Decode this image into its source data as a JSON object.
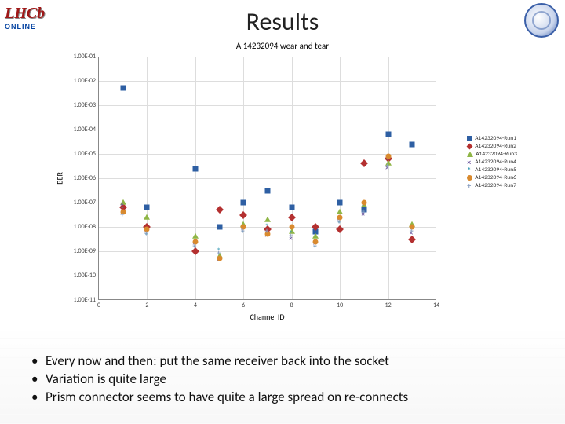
{
  "title": "Results",
  "logos": {
    "left_main": "LHCb",
    "left_sub": "ONLINE"
  },
  "chart": {
    "type": "scatter",
    "title": "A 14232094 wear and tear",
    "xlabel": "Channel ID",
    "ylabel": "BER",
    "title_fontsize": 11,
    "label_fontsize": 10,
    "tick_fontsize": 8,
    "background_color": "#ffffff",
    "grid_color": "#dddddd",
    "axis_color": "#888888",
    "xlim": [
      0,
      14
    ],
    "xticks": [
      0,
      2,
      4,
      6,
      8,
      10,
      12,
      14
    ],
    "y_scale": "log",
    "y_exp_range": [
      -11,
      -1
    ],
    "yticks_exp": [
      -1,
      -2,
      -3,
      -4,
      -5,
      -6,
      -7,
      -8,
      -9,
      -10,
      -11
    ],
    "ytick_labels": [
      "1.00E-01",
      "1.00E-02",
      "1.00E-03",
      "1.00E-04",
      "1.00E-05",
      "1.00E-06",
      "1.00E-07",
      "1.00E-08",
      "1.00E-09",
      "1.00E-10",
      "1.00E-11"
    ],
    "series": [
      {
        "name": "A14232094-Run1",
        "color": "#2e5fa3",
        "marker": "square",
        "points": [
          {
            "x": 1,
            "yexp": -2.3
          },
          {
            "x": 2,
            "yexp": -7.2
          },
          {
            "x": 4,
            "yexp": -5.6
          },
          {
            "x": 5,
            "yexp": -8.0
          },
          {
            "x": 6,
            "yexp": -7.0
          },
          {
            "x": 7,
            "yexp": -6.5
          },
          {
            "x": 8,
            "yexp": -7.2
          },
          {
            "x": 9,
            "yexp": -8.2
          },
          {
            "x": 10,
            "yexp": -7.0
          },
          {
            "x": 11,
            "yexp": -7.3
          },
          {
            "x": 12,
            "yexp": -4.2
          },
          {
            "x": 13,
            "yexp": -4.6
          }
        ]
      },
      {
        "name": "A14232094-Run2",
        "color": "#b43030",
        "marker": "diamond",
        "points": [
          {
            "x": 1,
            "yexp": -7.2
          },
          {
            "x": 2,
            "yexp": -8.0
          },
          {
            "x": 4,
            "yexp": -9.0
          },
          {
            "x": 5,
            "yexp": -7.3
          },
          {
            "x": 6,
            "yexp": -7.5
          },
          {
            "x": 7,
            "yexp": -8.1
          },
          {
            "x": 8,
            "yexp": -7.6
          },
          {
            "x": 9,
            "yexp": -8.0
          },
          {
            "x": 10,
            "yexp": -8.1
          },
          {
            "x": 11,
            "yexp": -5.4
          },
          {
            "x": 12,
            "yexp": -5.2
          },
          {
            "x": 13,
            "yexp": -8.5
          }
        ]
      },
      {
        "name": "A14232094-Run3",
        "color": "#8fb646",
        "marker": "triangle",
        "points": [
          {
            "x": 1,
            "yexp": -7.0
          },
          {
            "x": 2,
            "yexp": -7.6
          },
          {
            "x": 4,
            "yexp": -8.4
          },
          {
            "x": 5,
            "yexp": -9.2
          },
          {
            "x": 6,
            "yexp": -7.9
          },
          {
            "x": 7,
            "yexp": -7.7
          },
          {
            "x": 8,
            "yexp": -8.2
          },
          {
            "x": 9,
            "yexp": -8.4
          },
          {
            "x": 10,
            "yexp": -7.4
          },
          {
            "x": 11,
            "yexp": -7.1
          },
          {
            "x": 12,
            "yexp": -5.4
          },
          {
            "x": 13,
            "yexp": -7.9
          }
        ]
      },
      {
        "name": "A14232094-Run4",
        "color": "#6f5aa0",
        "marker": "x",
        "points": [
          {
            "x": 1,
            "yexp": -7.1
          },
          {
            "x": 2,
            "yexp": -8.2
          },
          {
            "x": 4,
            "yexp": -8.7
          },
          {
            "x": 5,
            "yexp": -9.4
          },
          {
            "x": 6,
            "yexp": -8.1
          },
          {
            "x": 7,
            "yexp": -8.4
          },
          {
            "x": 8,
            "yexp": -8.5
          },
          {
            "x": 9,
            "yexp": -8.7
          },
          {
            "x": 10,
            "yexp": -7.7
          },
          {
            "x": 11,
            "yexp": -7.5
          },
          {
            "x": 12,
            "yexp": -5.6
          },
          {
            "x": 13,
            "yexp": -8.3
          }
        ]
      },
      {
        "name": "A14232094-Run5",
        "color": "#3a9bb5",
        "marker": "star",
        "points": [
          {
            "x": 1,
            "yexp": -7.3
          },
          {
            "x": 2,
            "yexp": -8.4
          },
          {
            "x": 4,
            "yexp": -8.9
          },
          {
            "x": 5,
            "yexp": -9.0
          },
          {
            "x": 6,
            "yexp": -8.3
          },
          {
            "x": 7,
            "yexp": -8.0
          },
          {
            "x": 8,
            "yexp": -8.3
          },
          {
            "x": 9,
            "yexp": -8.9
          },
          {
            "x": 10,
            "yexp": -7.9
          },
          {
            "x": 11,
            "yexp": -7.2
          },
          {
            "x": 12,
            "yexp": -5.3
          },
          {
            "x": 13,
            "yexp": -8.1
          }
        ]
      },
      {
        "name": "A14232094-Run6",
        "color": "#d98a2e",
        "marker": "circle",
        "points": [
          {
            "x": 1,
            "yexp": -7.4
          },
          {
            "x": 2,
            "yexp": -8.1
          },
          {
            "x": 4,
            "yexp": -8.6
          },
          {
            "x": 5,
            "yexp": -9.3
          },
          {
            "x": 6,
            "yexp": -8.0
          },
          {
            "x": 7,
            "yexp": -8.3
          },
          {
            "x": 8,
            "yexp": -8.0
          },
          {
            "x": 9,
            "yexp": -8.6
          },
          {
            "x": 10,
            "yexp": -7.6
          },
          {
            "x": 11,
            "yexp": -7.0
          },
          {
            "x": 12,
            "yexp": -5.1
          },
          {
            "x": 13,
            "yexp": -8.0
          }
        ]
      },
      {
        "name": "A14232094-Run7",
        "color": "#8a9fc0",
        "marker": "plus",
        "points": [
          {
            "x": 1,
            "yexp": -7.5
          },
          {
            "x": 2,
            "yexp": -8.3
          },
          {
            "x": 4,
            "yexp": -8.8
          },
          {
            "x": 5,
            "yexp": -9.1
          },
          {
            "x": 6,
            "yexp": -8.2
          },
          {
            "x": 7,
            "yexp": -8.2
          },
          {
            "x": 8,
            "yexp": -8.4
          },
          {
            "x": 9,
            "yexp": -8.8
          },
          {
            "x": 10,
            "yexp": -7.8
          },
          {
            "x": 11,
            "yexp": -7.4
          },
          {
            "x": 12,
            "yexp": -5.5
          },
          {
            "x": 13,
            "yexp": -8.2
          }
        ]
      }
    ]
  },
  "bullets": [
    "Every now and then: put the same receiver back into the socket",
    "Variation is quite large",
    "Prism connector seems to have quite a large spread on re-connects"
  ]
}
